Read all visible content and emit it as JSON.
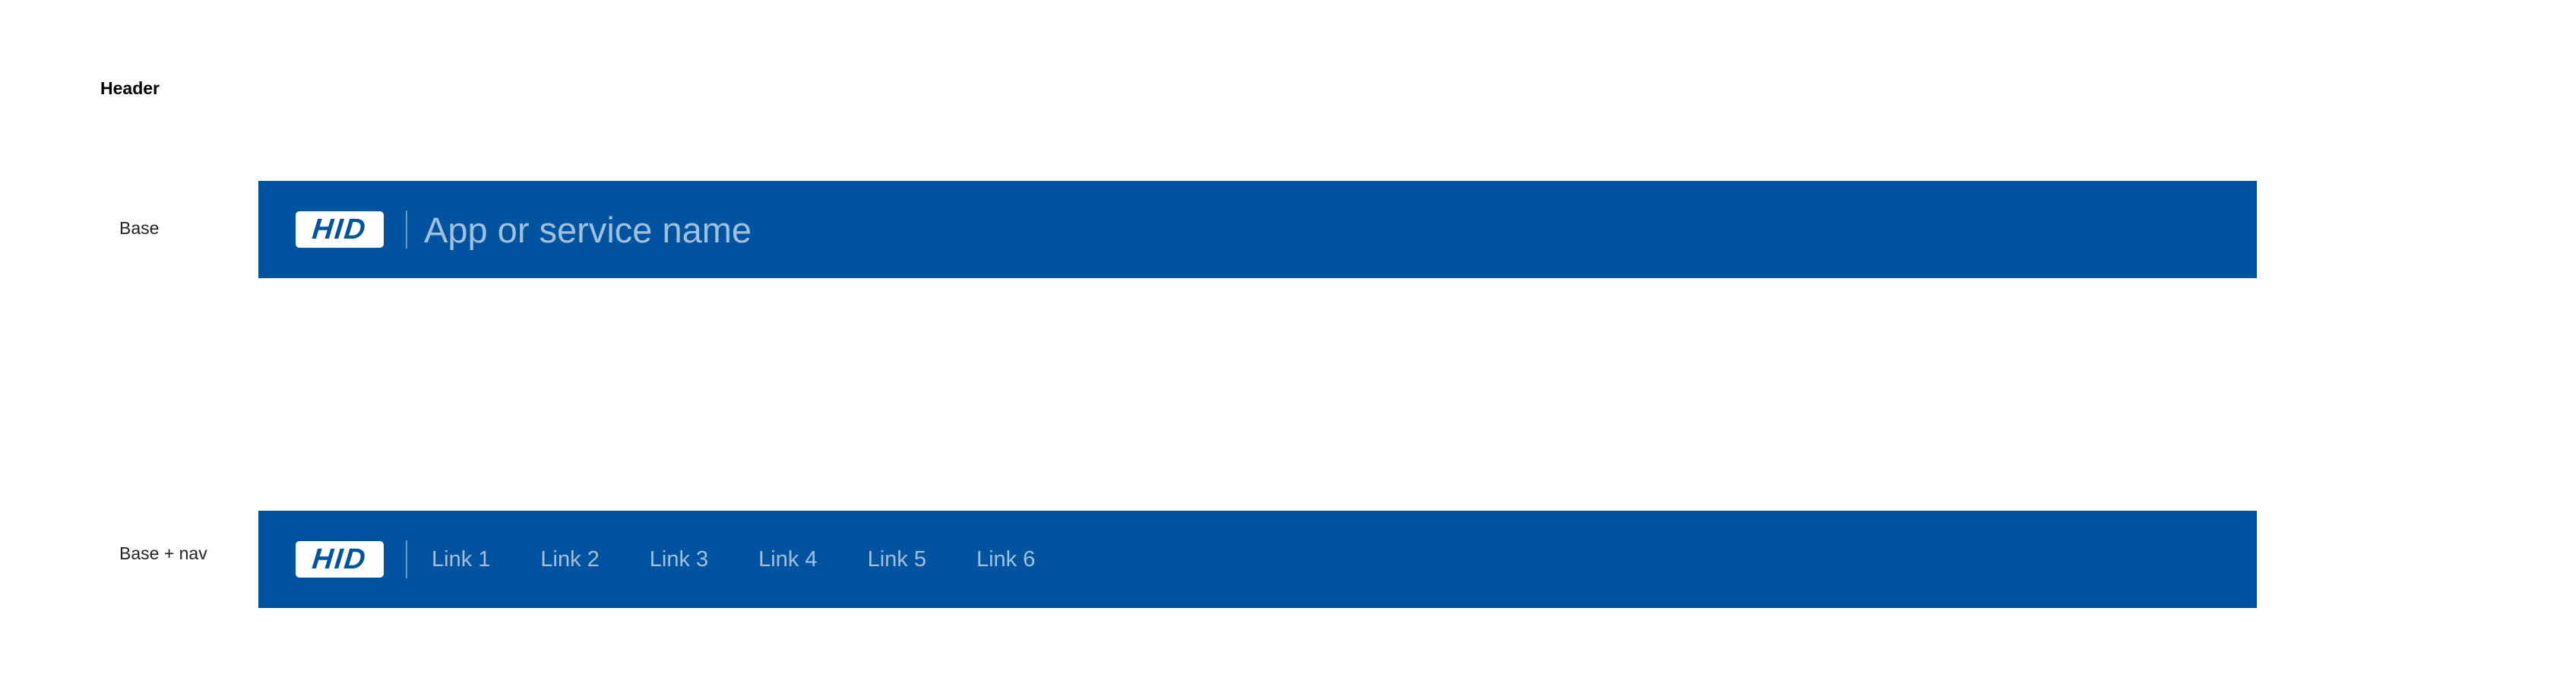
{
  "page": {
    "title": "Header"
  },
  "colors": {
    "header_background": "#00549F",
    "header_text": "#BFD3E8",
    "logo_background": "#FFFFFF",
    "logo_text": "#00549F"
  },
  "variants": {
    "base": {
      "label": "Base",
      "logo_text": "HID",
      "app_name": "App or service name"
    },
    "nav": {
      "label": "Base + nav",
      "logo_text": "HID",
      "links": [
        "Link 1",
        "Link 2",
        "Link 3",
        "Link 4",
        "Link 5",
        "Link 6"
      ]
    }
  }
}
